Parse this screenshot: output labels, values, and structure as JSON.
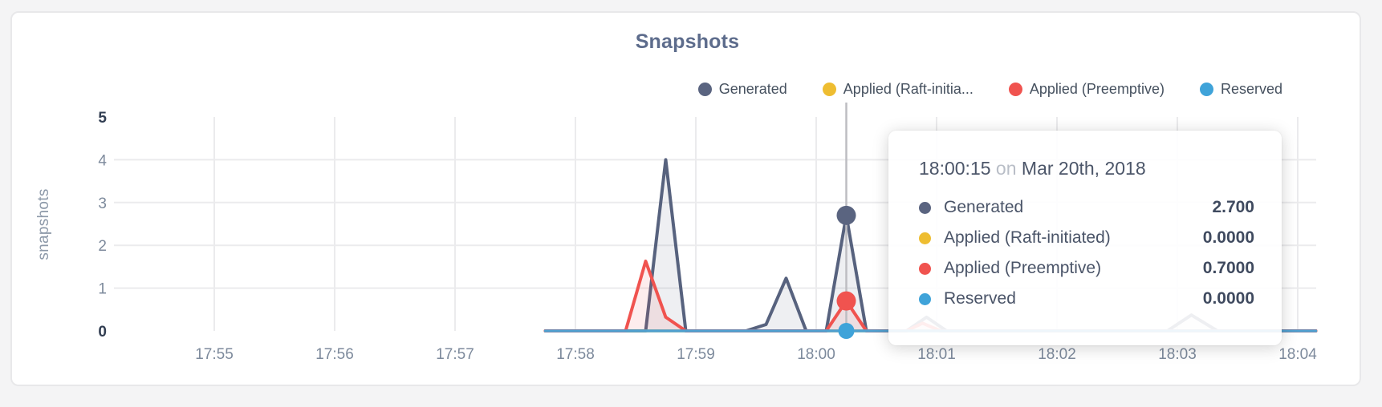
{
  "title": "Snapshots",
  "y_axis_label": "snapshots",
  "colors": {
    "generated": "#5a6480",
    "raft_initiated": "#eebd31",
    "preemptive": "#f0534f",
    "reserved": "#3fa3d9",
    "grid": "#ebebed",
    "hover_line": "#bdbdc2",
    "title": "#5d6c8c",
    "axis_text": "#7d8a9c",
    "axis_text_strong": "#323e52"
  },
  "legend": [
    {
      "label": "Generated",
      "color": "#5a6480"
    },
    {
      "label": "Applied (Raft-initia...",
      "color": "#eebd31"
    },
    {
      "label": "Applied (Preemptive)",
      "color": "#f0534f"
    },
    {
      "label": "Reserved",
      "color": "#3fa3d9"
    }
  ],
  "tooltip": {
    "time": "18:00:15",
    "connector": "on",
    "date": "Mar 20th, 2018",
    "rows": [
      {
        "label": "Generated",
        "value": "2.700",
        "color": "#5a6480"
      },
      {
        "label": "Applied (Raft-initiated)",
        "value": "0.0000",
        "color": "#eebd31"
      },
      {
        "label": "Applied (Preemptive)",
        "value": "0.7000",
        "color": "#f0534f"
      },
      {
        "label": "Reserved",
        "value": "0.0000",
        "color": "#3fa3d9"
      }
    ]
  },
  "chart_data": {
    "type": "area",
    "title": "Snapshots",
    "ylabel": "snapshots",
    "ylim": [
      0,
      5
    ],
    "y_ticks": [
      0,
      1,
      2,
      3,
      4,
      5
    ],
    "x_tick_labels": [
      "17:55",
      "17:56",
      "17:57",
      "17:58",
      "17:59",
      "18:00",
      "18:01",
      "18:02",
      "18:03",
      "18:04"
    ],
    "grid": true,
    "legend_position": "top-right",
    "x_unit": "seconds after 17:55:00",
    "series": [
      {
        "name": "Generated",
        "color": "#57627e",
        "fill": "rgba(90,100,128,0.10)",
        "width": 4,
        "points": [
          [
            165,
            0
          ],
          [
            205,
            0
          ],
          [
            215,
            0
          ],
          [
            225,
            4.0
          ],
          [
            235,
            0
          ],
          [
            265,
            0
          ],
          [
            275,
            0.15
          ],
          [
            285,
            1.23
          ],
          [
            295,
            0
          ],
          [
            305,
            0
          ],
          [
            315,
            2.7
          ],
          [
            325,
            0
          ],
          [
            345,
            0
          ],
          [
            355,
            0.32
          ],
          [
            365,
            0
          ],
          [
            475,
            0
          ],
          [
            487,
            0.37
          ],
          [
            500,
            0
          ],
          [
            549,
            0
          ]
        ]
      },
      {
        "name": "Applied (Raft-initiated)",
        "color": "#eebd31",
        "fill": null,
        "width": 3.5,
        "points": [
          [
            165,
            0
          ],
          [
            549,
            0
          ]
        ]
      },
      {
        "name": "Applied (Preemptive)",
        "color": "#f0534f",
        "fill": "rgba(240,83,79,0.10)",
        "width": 4,
        "points": [
          [
            165,
            0
          ],
          [
            205,
            0
          ],
          [
            215,
            1.63
          ],
          [
            225,
            0.32
          ],
          [
            235,
            0
          ],
          [
            305,
            0
          ],
          [
            315,
            0.7
          ],
          [
            325,
            0
          ],
          [
            345,
            0
          ],
          [
            353,
            0.18
          ],
          [
            362,
            0
          ],
          [
            549,
            0
          ]
        ]
      },
      {
        "name": "Reserved",
        "color": "#4fa0d0",
        "fill": null,
        "width": 3.5,
        "points": [
          [
            165,
            0
          ],
          [
            549,
            0
          ]
        ]
      }
    ],
    "hover": {
      "time": "18:00:15",
      "x_seconds": 315,
      "points": [
        {
          "series": "Generated",
          "value": 2.7,
          "r": 12,
          "color": "#5a6480"
        },
        {
          "series": "Applied (Preemptive)",
          "value": 0.7,
          "r": 12,
          "color": "#f0534f"
        },
        {
          "series": "Reserved",
          "value": 0.0,
          "r": 10,
          "color": "#3fa3d9"
        }
      ]
    }
  }
}
